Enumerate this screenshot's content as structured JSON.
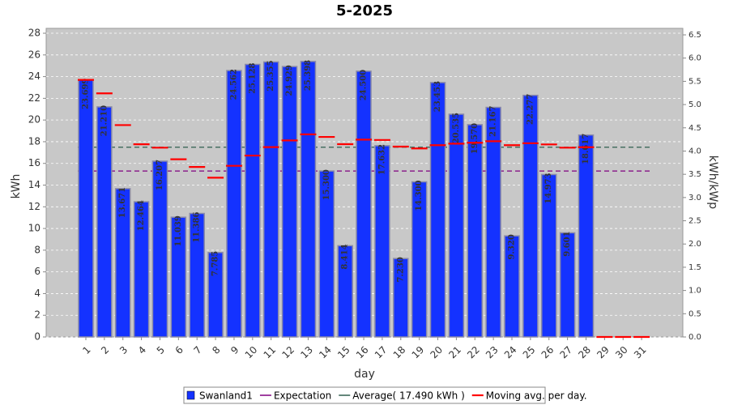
{
  "chart_data": {
    "type": "bar",
    "title": "5-2025",
    "x_label": "day",
    "y_label": "kWh",
    "y2_label": "kWh/kWp",
    "categories": [
      "1",
      "2",
      "3",
      "4",
      "5",
      "6",
      "7",
      "8",
      "9",
      "10",
      "11",
      "12",
      "13",
      "14",
      "15",
      "16",
      "17",
      "18",
      "19",
      "20",
      "21",
      "22",
      "23",
      "24",
      "25",
      "26",
      "27",
      "28",
      "29",
      "30",
      "31"
    ],
    "ylim": [
      0,
      28.45
    ],
    "yticks": [
      0,
      2,
      4,
      6,
      8,
      10,
      12,
      14,
      16,
      18,
      20,
      22,
      24,
      26,
      28
    ],
    "y2lim": [
      0,
      6.64
    ],
    "y2ticks": [
      {
        "value": 0,
        "label": "0.0"
      },
      0.5,
      {
        "value": 1,
        "label": "1.0"
      },
      1.5,
      {
        "value": 2,
        "label": "2.0"
      },
      2.5,
      {
        "value": 3,
        "label": "3.0"
      },
      3.5,
      {
        "value": 4,
        "label": "4.0"
      },
      4.5,
      {
        "value": 5,
        "label": "5.0"
      },
      5.5,
      {
        "value": 6,
        "label": "6.0"
      },
      6.5
    ],
    "grid": true,
    "series": [
      {
        "name": "Swanland1",
        "type": "bar",
        "color": "#1432ff",
        "values": [
          23.699,
          21.21,
          13.671,
          12.464,
          16.207,
          11.039,
          11.386,
          7.785,
          24.562,
          25.128,
          25.355,
          24.929,
          25.398,
          15.3,
          8.414,
          24.5,
          17.632,
          7.23,
          14.3,
          23.453,
          20.535,
          19.57,
          21.167,
          9.32,
          22.277,
          14.973,
          9.601,
          18.617,
          null,
          null,
          null
        ],
        "value_labels": [
          "23.699",
          "21.210",
          "13.671",
          "12.464",
          "16.207",
          "11.039",
          "11.386",
          "7.785",
          "24.562",
          "25.128",
          "25.355",
          "24.929",
          "25.398",
          "15.300",
          "8.414",
          "24.500",
          "17.632",
          "7.230",
          "14.300",
          "23.453",
          "20.535",
          "19.570",
          "21.167",
          "9.320",
          "22.277",
          "14.973",
          "9.601",
          "18.617",
          null,
          null,
          null
        ]
      },
      {
        "name": "Expectation",
        "type": "hline",
        "color": "#800080",
        "value": 15.3
      },
      {
        "name": "Average( 17.490 kWh )",
        "type": "hline",
        "color": "#2f5f4f",
        "value": 17.49
      },
      {
        "name": "Moving avg. per day.",
        "type": "dash",
        "color": "#ff0000",
        "values": [
          23.7,
          22.46,
          19.53,
          17.76,
          17.45,
          16.38,
          15.67,
          14.68,
          15.78,
          16.72,
          17.5,
          18.12,
          18.68,
          18.44,
          17.77,
          18.19,
          18.16,
          17.55,
          17.38,
          17.68,
          17.82,
          17.9,
          18.04,
          17.68,
          17.86,
          17.75,
          17.45,
          17.49,
          0,
          0,
          0
        ]
      }
    ]
  }
}
